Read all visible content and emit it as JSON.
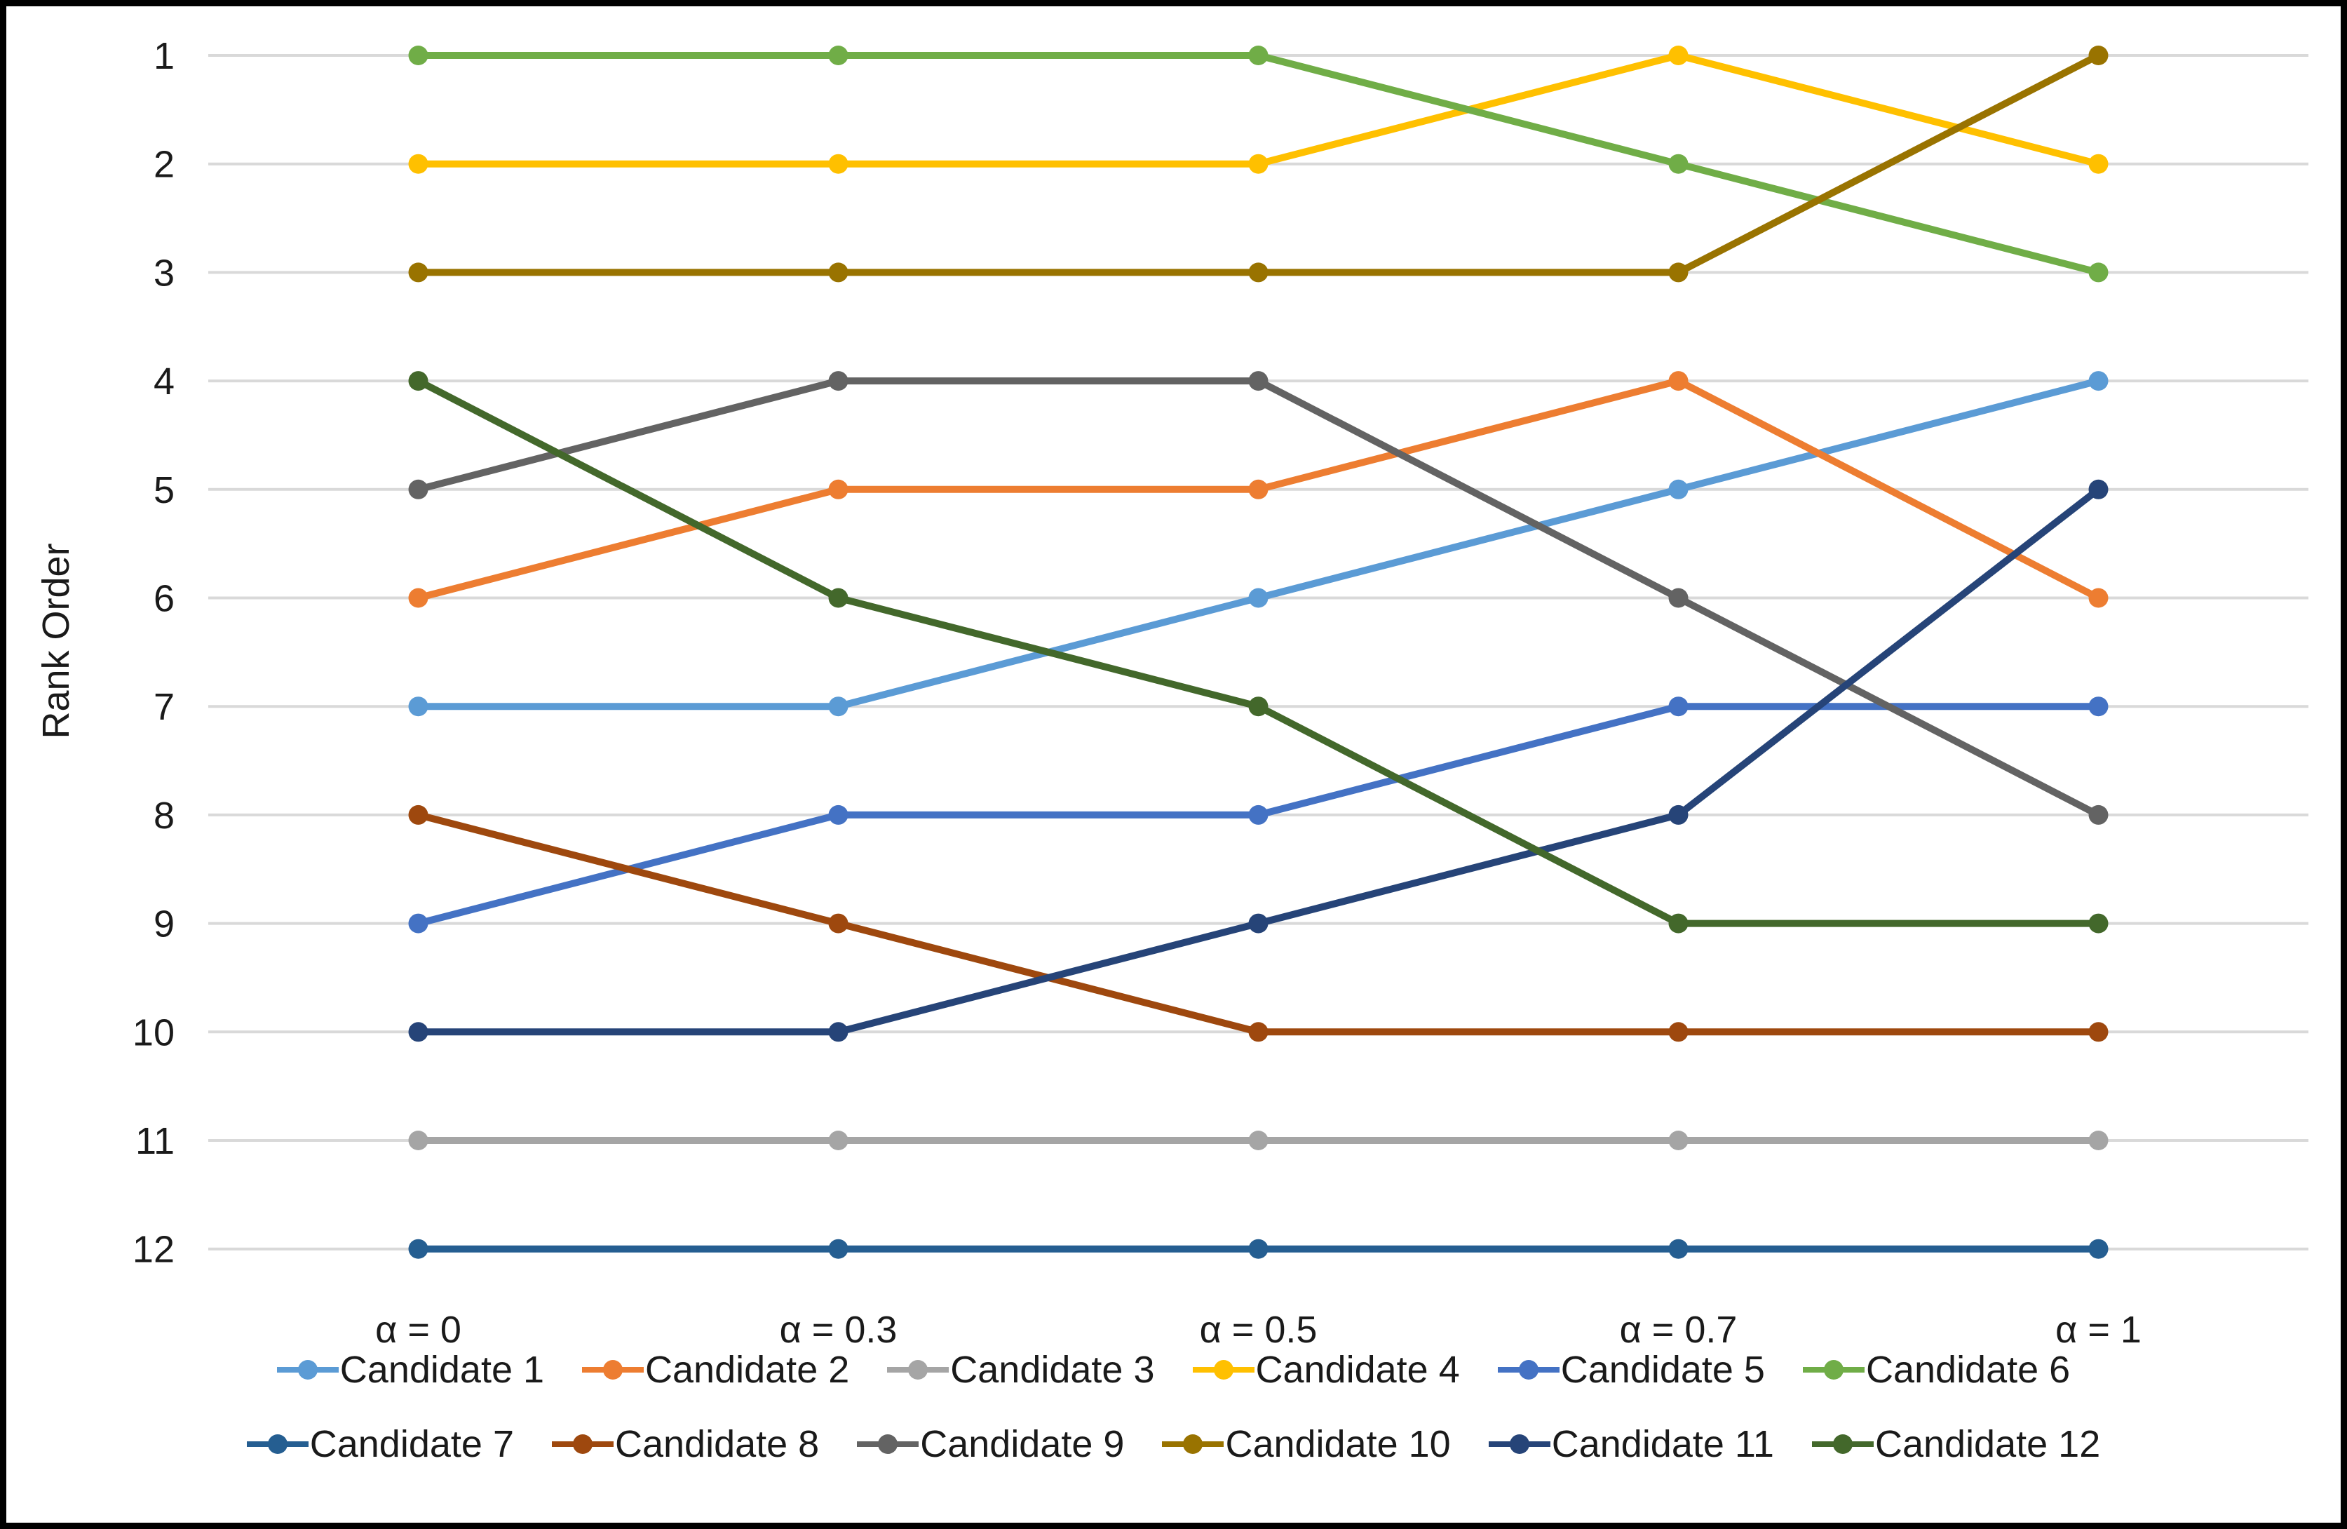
{
  "figure": {
    "background_color": "#FFFFFF",
    "border_color": "#000000"
  },
  "chart_data": {
    "type": "line",
    "title": "",
    "xlabel": "",
    "ylabel": "Rank Order",
    "categories": [
      "α = 0",
      "α = 0.3",
      "α = 0.5",
      "α = 0.7",
      "α = 1"
    ],
    "y_ticks": [
      1,
      2,
      3,
      4,
      5,
      6,
      7,
      8,
      9,
      10,
      11,
      12
    ],
    "ylim": [
      1,
      12
    ],
    "y_axis_inverted": true,
    "grid": "horizontal",
    "gridline_color": "#D9D9D9",
    "text_color": "#1a1a1a",
    "marker_style": "circle",
    "legend_position": "bottom",
    "legend_rows": 2,
    "series": [
      {
        "name": "Candidate 1",
        "color": "#5B9BD5",
        "values": [
          7,
          7,
          6,
          5,
          4
        ]
      },
      {
        "name": "Candidate 2",
        "color": "#ED7D31",
        "values": [
          6,
          5,
          5,
          4,
          6
        ]
      },
      {
        "name": "Candidate 3",
        "color": "#A5A5A5",
        "values": [
          11,
          11,
          11,
          11,
          11
        ]
      },
      {
        "name": "Candidate 4",
        "color": "#FFC000",
        "values": [
          2,
          2,
          2,
          1,
          2
        ]
      },
      {
        "name": "Candidate 5",
        "color": "#4472C4",
        "values": [
          9,
          8,
          8,
          7,
          7
        ]
      },
      {
        "name": "Candidate 6",
        "color": "#70AD47",
        "values": [
          1,
          1,
          1,
          2,
          3
        ]
      },
      {
        "name": "Candidate 7",
        "color": "#255E91",
        "values": [
          12,
          12,
          12,
          12,
          12
        ]
      },
      {
        "name": "Candidate 8",
        "color": "#9E480E",
        "values": [
          8,
          9,
          10,
          10,
          10
        ]
      },
      {
        "name": "Candidate 9",
        "color": "#636363",
        "values": [
          5,
          4,
          4,
          6,
          8
        ]
      },
      {
        "name": "Candidate 10",
        "color": "#997300",
        "values": [
          3,
          3,
          3,
          3,
          1
        ]
      },
      {
        "name": "Candidate 11",
        "color": "#264478",
        "values": [
          10,
          10,
          9,
          8,
          5
        ]
      },
      {
        "name": "Candidate 12",
        "color": "#43682B",
        "values": [
          4,
          6,
          7,
          9,
          9
        ]
      }
    ]
  }
}
